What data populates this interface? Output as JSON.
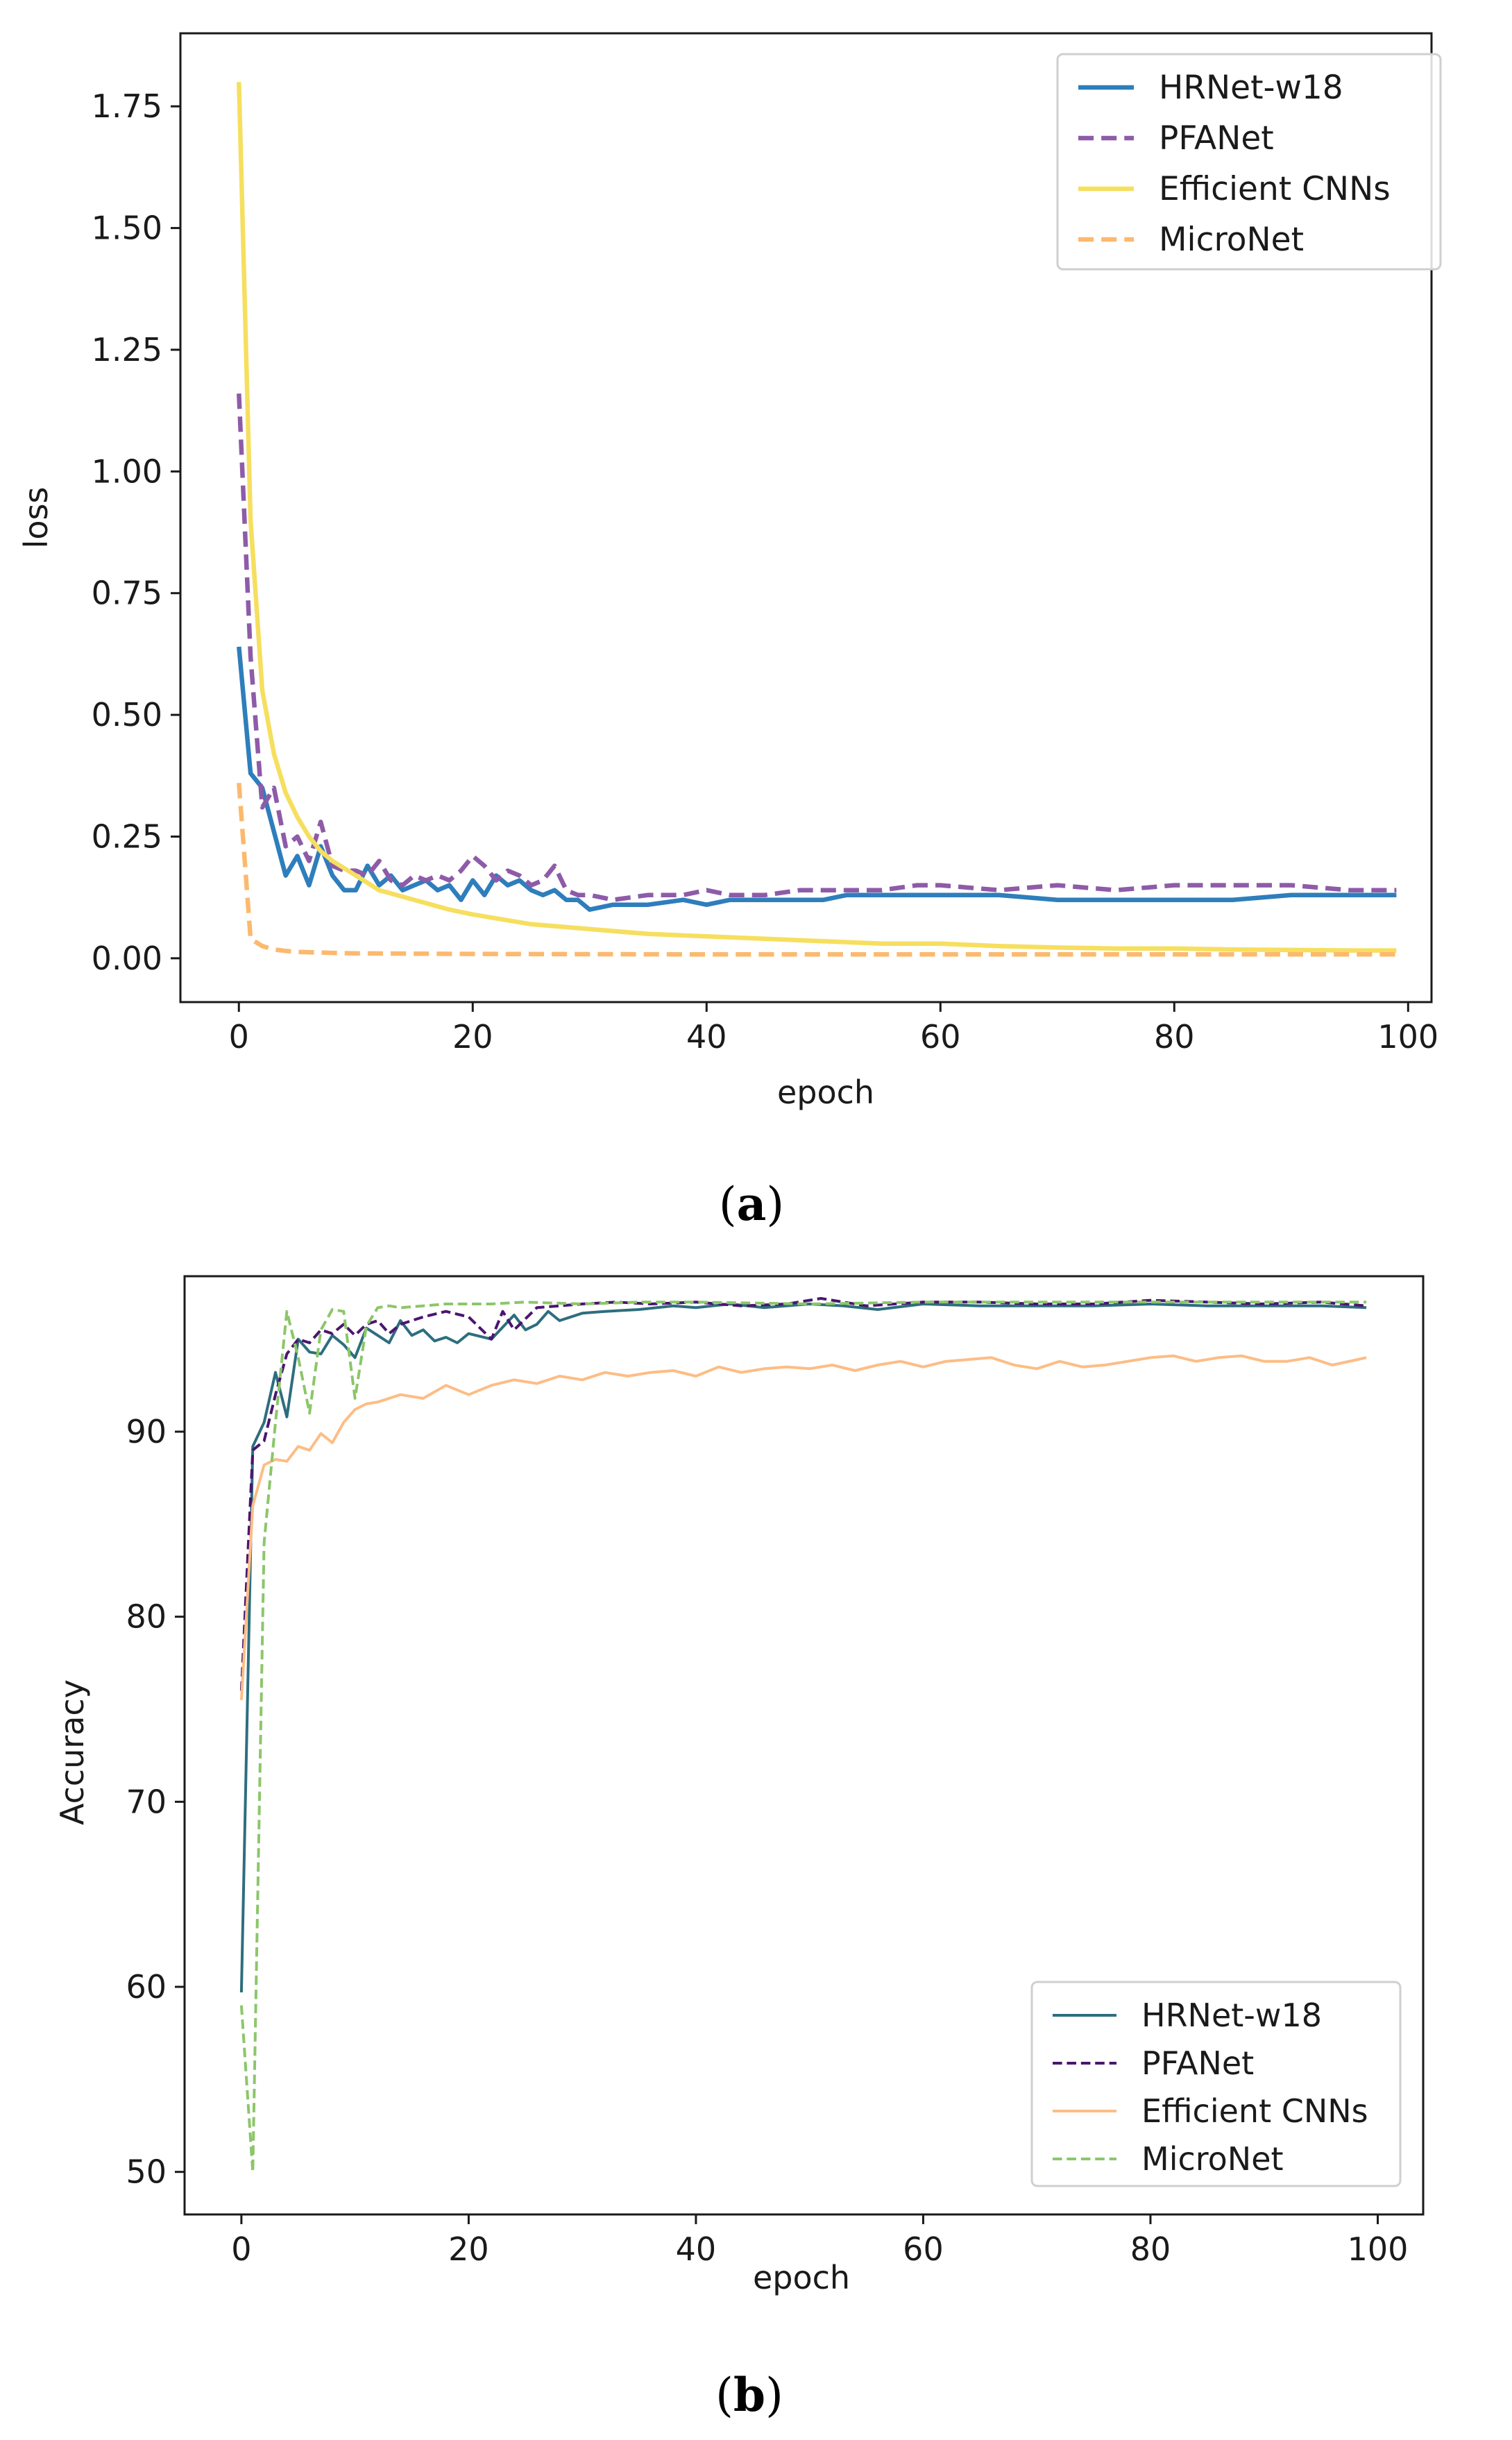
{
  "chart_data": [
    {
      "type": "line",
      "title": "",
      "caption_letter": "a",
      "xlabel": "epoch",
      "ylabel": "loss",
      "xlim": [
        -5,
        102
      ],
      "ylim": [
        -0.09,
        1.9
      ],
      "xticks": [
        0,
        20,
        40,
        60,
        80,
        100
      ],
      "yticks": [
        0.0,
        0.25,
        0.5,
        0.75,
        1.0,
        1.25,
        1.5,
        1.75
      ],
      "ytick_labels": [
        "0.00",
        "0.25",
        "0.50",
        "0.75",
        "1.00",
        "1.25",
        "1.50",
        "1.75"
      ],
      "xtick_labels": [
        "0",
        "20",
        "40",
        "60",
        "80",
        "100"
      ],
      "legend_position": "top-right",
      "series": [
        {
          "name": "HRNet-w18",
          "color": "#2e7ebc",
          "dash": "solid",
          "x": [
            0,
            1,
            2,
            3,
            4,
            5,
            6,
            7,
            8,
            9,
            10,
            11,
            12,
            13,
            14,
            15,
            16,
            17,
            18,
            19,
            20,
            21,
            22,
            23,
            24,
            25,
            26,
            27,
            28,
            29,
            30,
            32,
            35,
            38,
            40,
            42,
            45,
            48,
            50,
            52,
            55,
            58,
            60,
            65,
            70,
            75,
            80,
            85,
            90,
            95,
            99
          ],
          "y": [
            0.64,
            0.38,
            0.35,
            0.26,
            0.17,
            0.21,
            0.15,
            0.23,
            0.17,
            0.14,
            0.14,
            0.19,
            0.15,
            0.17,
            0.14,
            0.15,
            0.16,
            0.14,
            0.15,
            0.12,
            0.16,
            0.13,
            0.17,
            0.15,
            0.16,
            0.14,
            0.13,
            0.14,
            0.12,
            0.12,
            0.1,
            0.11,
            0.11,
            0.12,
            0.11,
            0.12,
            0.12,
            0.12,
            0.12,
            0.13,
            0.13,
            0.13,
            0.13,
            0.13,
            0.12,
            0.12,
            0.12,
            0.12,
            0.13,
            0.13,
            0.13
          ]
        },
        {
          "name": "PFANet",
          "color": "#8e5ba8",
          "dash": "dashed",
          "x": [
            0,
            1,
            2,
            3,
            4,
            5,
            6,
            7,
            8,
            9,
            10,
            11,
            12,
            13,
            14,
            15,
            16,
            17,
            18,
            19,
            20,
            21,
            22,
            23,
            24,
            25,
            26,
            27,
            28,
            29,
            30,
            32,
            35,
            38,
            40,
            42,
            45,
            48,
            50,
            52,
            55,
            58,
            60,
            65,
            70,
            75,
            80,
            85,
            90,
            95,
            99
          ],
          "y": [
            1.16,
            0.62,
            0.31,
            0.35,
            0.23,
            0.25,
            0.2,
            0.28,
            0.19,
            0.18,
            0.18,
            0.17,
            0.2,
            0.16,
            0.15,
            0.17,
            0.16,
            0.17,
            0.16,
            0.18,
            0.21,
            0.19,
            0.16,
            0.18,
            0.17,
            0.15,
            0.16,
            0.19,
            0.14,
            0.13,
            0.13,
            0.12,
            0.13,
            0.13,
            0.14,
            0.13,
            0.13,
            0.14,
            0.14,
            0.14,
            0.14,
            0.15,
            0.15,
            0.14,
            0.15,
            0.14,
            0.15,
            0.15,
            0.15,
            0.14,
            0.14
          ]
        },
        {
          "name": "Efficient CNNs",
          "color": "#f6df5f",
          "dash": "solid",
          "x": [
            0,
            1,
            2,
            3,
            4,
            5,
            6,
            7,
            8,
            10,
            12,
            15,
            18,
            20,
            25,
            30,
            35,
            40,
            45,
            50,
            55,
            60,
            65,
            70,
            75,
            80,
            85,
            90,
            95,
            99
          ],
          "y": [
            1.8,
            0.9,
            0.55,
            0.42,
            0.34,
            0.29,
            0.25,
            0.22,
            0.2,
            0.17,
            0.14,
            0.12,
            0.1,
            0.09,
            0.07,
            0.06,
            0.05,
            0.045,
            0.04,
            0.035,
            0.03,
            0.03,
            0.025,
            0.022,
            0.02,
            0.02,
            0.018,
            0.017,
            0.016,
            0.016
          ]
        },
        {
          "name": "MicroNet",
          "color": "#fcb96e",
          "dash": "dashed",
          "x": [
            0,
            1,
            2,
            3,
            4,
            5,
            8,
            10,
            20,
            40,
            60,
            80,
            99
          ],
          "y": [
            0.36,
            0.04,
            0.025,
            0.018,
            0.015,
            0.013,
            0.011,
            0.01,
            0.009,
            0.008,
            0.008,
            0.008,
            0.008
          ]
        }
      ]
    },
    {
      "type": "line",
      "title": "",
      "caption_letter": "b",
      "xlabel": "epoch",
      "ylabel": "Accuracy",
      "xlim": [
        -5,
        104
      ],
      "ylim": [
        47.7,
        98.4
      ],
      "xticks": [
        0,
        20,
        40,
        60,
        80,
        100
      ],
      "xtick_labels": [
        "0",
        "20",
        "40",
        "60",
        "80",
        "100"
      ],
      "yticks": [
        50,
        60,
        70,
        80,
        90
      ],
      "ytick_labels": [
        "50",
        "60",
        "70",
        "80",
        "90"
      ],
      "legend_position": "bottom-right",
      "series": [
        {
          "name": "HRNet-w18",
          "color": "#2d6e7e",
          "dash": "solid",
          "x": [
            0,
            1,
            2,
            3,
            4,
            5,
            6,
            7,
            8,
            9,
            10,
            11,
            12,
            13,
            14,
            15,
            16,
            17,
            18,
            19,
            20,
            22,
            24,
            25,
            26,
            27,
            28,
            30,
            32,
            35,
            38,
            40,
            43,
            46,
            50,
            53,
            56,
            60,
            65,
            70,
            75,
            80,
            85,
            90,
            95,
            99
          ],
          "y": [
            59.7,
            89.2,
            90.5,
            93.2,
            90.8,
            95.0,
            94.3,
            94.2,
            95.2,
            94.7,
            94.0,
            95.6,
            95.2,
            94.8,
            96.0,
            95.2,
            95.5,
            94.9,
            95.1,
            94.8,
            95.3,
            95.0,
            96.3,
            95.5,
            95.8,
            96.5,
            96.0,
            96.4,
            96.5,
            96.6,
            96.8,
            96.7,
            96.9,
            96.7,
            96.9,
            96.8,
            96.6,
            96.9,
            96.8,
            96.8,
            96.8,
            96.9,
            96.8,
            96.8,
            96.8,
            96.7
          ]
        },
        {
          "name": "PFANet",
          "color": "#4b1570",
          "dash": "dashed",
          "x": [
            0,
            1,
            2,
            3,
            4,
            5,
            6,
            7,
            8,
            9,
            10,
            11,
            12,
            13,
            14,
            15,
            16,
            18,
            20,
            22,
            23,
            24,
            26,
            28,
            30,
            33,
            36,
            40,
            44,
            48,
            51,
            55,
            60,
            65,
            70,
            75,
            80,
            85,
            90,
            95,
            99
          ],
          "y": [
            76.0,
            89.0,
            89.5,
            92.0,
            94.2,
            95.0,
            94.8,
            95.5,
            95.3,
            95.8,
            95.2,
            95.8,
            96.0,
            95.3,
            95.8,
            96.0,
            96.2,
            96.5,
            96.2,
            95.0,
            96.5,
            95.5,
            96.7,
            96.8,
            96.9,
            97.0,
            96.9,
            97.0,
            96.8,
            96.9,
            97.2,
            96.8,
            97.0,
            97.0,
            96.9,
            96.9,
            97.1,
            97.0,
            96.9,
            97.0,
            96.8
          ]
        },
        {
          "name": "Efficient CNNs",
          "color": "#fdbd85",
          "dash": "solid",
          "x": [
            0,
            1,
            2,
            3,
            4,
            5,
            6,
            7,
            8,
            9,
            10,
            11,
            12,
            14,
            16,
            18,
            20,
            22,
            24,
            26,
            28,
            30,
            32,
            34,
            36,
            38,
            40,
            42,
            44,
            46,
            48,
            50,
            52,
            54,
            56,
            58,
            60,
            62,
            64,
            66,
            68,
            70,
            72,
            74,
            76,
            78,
            80,
            82,
            84,
            86,
            88,
            90,
            92,
            94,
            96,
            99
          ],
          "y": [
            75.5,
            86.0,
            88.2,
            88.5,
            88.4,
            89.2,
            89.0,
            89.9,
            89.4,
            90.5,
            91.2,
            91.5,
            91.6,
            92.0,
            91.8,
            92.5,
            92.0,
            92.5,
            92.8,
            92.6,
            93.0,
            92.8,
            93.2,
            93.0,
            93.2,
            93.3,
            93.0,
            93.5,
            93.2,
            93.4,
            93.5,
            93.4,
            93.6,
            93.3,
            93.6,
            93.8,
            93.5,
            93.8,
            93.9,
            94.0,
            93.6,
            93.4,
            93.8,
            93.5,
            93.6,
            93.8,
            94.0,
            94.1,
            93.8,
            94.0,
            94.1,
            93.8,
            93.8,
            94.0,
            93.6,
            94.0
          ]
        },
        {
          "name": "MicroNet",
          "color": "#8cc66a",
          "dash": "dashed",
          "x": [
            0,
            1,
            2,
            3,
            4,
            5,
            6,
            7,
            8,
            9,
            10,
            11,
            12,
            13,
            14,
            16,
            18,
            20,
            22,
            25,
            30,
            35,
            40,
            50,
            60,
            70,
            80,
            90,
            99
          ],
          "y": [
            59.0,
            50.0,
            84.0,
            90.5,
            96.5,
            94.0,
            91.0,
            95.5,
            96.6,
            96.5,
            91.8,
            95.7,
            96.7,
            96.8,
            96.7,
            96.8,
            96.9,
            96.9,
            96.9,
            97.0,
            96.9,
            97.0,
            97.0,
            96.9,
            97.0,
            97.0,
            97.0,
            97.0,
            97.0
          ]
        }
      ]
    }
  ]
}
